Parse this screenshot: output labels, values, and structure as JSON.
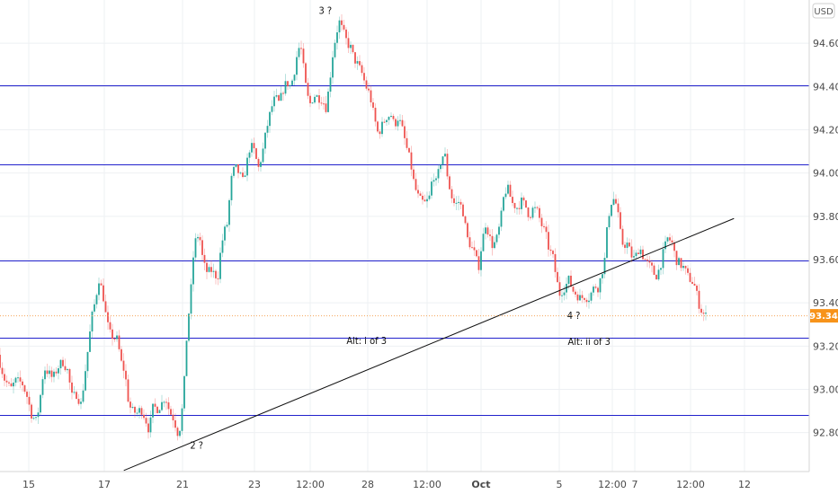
{
  "chart_data": {
    "type": "candlestick",
    "currency": "USD",
    "current_price": "93.34",
    "ylim": [
      92.62,
      94.8
    ],
    "grid": true,
    "x_ticks": [
      "15",
      "17",
      "21",
      "23",
      "12:00",
      "28",
      "12:00",
      "Oct",
      "5",
      "12:00",
      "7",
      "12:00",
      "12"
    ],
    "y_ticks": [
      "92.80",
      "93.00",
      "93.20",
      "93.40",
      "93.60",
      "93.80",
      "94.00",
      "94.20",
      "94.40",
      "94.60"
    ],
    "horizontal_levels": [
      94.404,
      94.04,
      93.597,
      93.238,
      92.883
    ],
    "trendline": {
      "start": {
        "t": 0.153,
        "price": 92.625
      },
      "end": {
        "t": 0.907,
        "price": 93.79
      }
    },
    "annotations": [
      {
        "text": "3 ?",
        "t": 0.402,
        "price": 94.735
      },
      {
        "text": "2 ?",
        "t": 0.243,
        "price": 92.725
      },
      {
        "text": "4 ?",
        "t": 0.709,
        "price": 93.325
      },
      {
        "text": "Alt: i of 3",
        "t": 0.453,
        "price": 93.21
      },
      {
        "text": "Alt: ii of 3",
        "t": 0.728,
        "price": 93.205
      }
    ],
    "price_path": [
      [
        0.0,
        93.16
      ],
      [
        0.008,
        93.05
      ],
      [
        0.016,
        93.0
      ],
      [
        0.022,
        93.04
      ],
      [
        0.03,
        93.03
      ],
      [
        0.036,
        92.97
      ],
      [
        0.042,
        92.88
      ],
      [
        0.048,
        92.85
      ],
      [
        0.052,
        92.95
      ],
      [
        0.057,
        93.1
      ],
      [
        0.062,
        93.08
      ],
      [
        0.068,
        93.05
      ],
      [
        0.074,
        93.1
      ],
      [
        0.08,
        93.13
      ],
      [
        0.086,
        93.09
      ],
      [
        0.092,
        92.96
      ],
      [
        0.097,
        92.98
      ],
      [
        0.103,
        92.93
      ],
      [
        0.108,
        93.08
      ],
      [
        0.112,
        93.2
      ],
      [
        0.116,
        93.33
      ],
      [
        0.12,
        93.4
      ],
      [
        0.125,
        93.51
      ],
      [
        0.13,
        93.44
      ],
      [
        0.134,
        93.33
      ],
      [
        0.138,
        93.26
      ],
      [
        0.143,
        93.24
      ],
      [
        0.148,
        93.23
      ],
      [
        0.152,
        93.13
      ],
      [
        0.157,
        93.08
      ],
      [
        0.162,
        92.93
      ],
      [
        0.166,
        92.9
      ],
      [
        0.172,
        92.89
      ],
      [
        0.177,
        92.91
      ],
      [
        0.182,
        92.87
      ],
      [
        0.187,
        92.81
      ],
      [
        0.192,
        92.92
      ],
      [
        0.197,
        92.91
      ],
      [
        0.202,
        92.93
      ],
      [
        0.207,
        92.97
      ],
      [
        0.212,
        92.9
      ],
      [
        0.218,
        92.86
      ],
      [
        0.222,
        92.8
      ],
      [
        0.226,
        92.83
      ],
      [
        0.23,
        93.0
      ],
      [
        0.234,
        93.28
      ],
      [
        0.238,
        93.42
      ],
      [
        0.242,
        93.63
      ],
      [
        0.246,
        93.72
      ],
      [
        0.25,
        93.69
      ],
      [
        0.254,
        93.58
      ],
      [
        0.259,
        93.54
      ],
      [
        0.264,
        93.55
      ],
      [
        0.268,
        93.53
      ],
      [
        0.272,
        93.52
      ],
      [
        0.276,
        93.66
      ],
      [
        0.28,
        93.73
      ],
      [
        0.284,
        93.77
      ],
      [
        0.288,
        93.96
      ],
      [
        0.293,
        94.03
      ],
      [
        0.298,
        94.0
      ],
      [
        0.303,
        93.96
      ],
      [
        0.308,
        94.05
      ],
      [
        0.312,
        94.13
      ],
      [
        0.317,
        94.1
      ],
      [
        0.322,
        94.02
      ],
      [
        0.327,
        94.09
      ],
      [
        0.332,
        94.2
      ],
      [
        0.338,
        94.3
      ],
      [
        0.343,
        94.35
      ],
      [
        0.348,
        94.32
      ],
      [
        0.352,
        94.38
      ],
      [
        0.357,
        94.42
      ],
      [
        0.362,
        94.4
      ],
      [
        0.366,
        94.46
      ],
      [
        0.37,
        94.55
      ],
      [
        0.374,
        94.6
      ],
      [
        0.378,
        94.48
      ],
      [
        0.382,
        94.36
      ],
      [
        0.386,
        94.32
      ],
      [
        0.391,
        94.36
      ],
      [
        0.396,
        94.35
      ],
      [
        0.401,
        94.34
      ],
      [
        0.406,
        94.3
      ],
      [
        0.41,
        94.42
      ],
      [
        0.414,
        94.55
      ],
      [
        0.418,
        94.64
      ],
      [
        0.422,
        94.7
      ],
      [
        0.427,
        94.65
      ],
      [
        0.432,
        94.6
      ],
      [
        0.436,
        94.58
      ],
      [
        0.44,
        94.53
      ],
      [
        0.445,
        94.5
      ],
      [
        0.45,
        94.46
      ],
      [
        0.455,
        94.4
      ],
      [
        0.46,
        94.36
      ],
      [
        0.465,
        94.26
      ],
      [
        0.47,
        94.18
      ],
      [
        0.475,
        94.22
      ],
      [
        0.48,
        94.26
      ],
      [
        0.486,
        94.27
      ],
      [
        0.49,
        94.22
      ],
      [
        0.495,
        94.26
      ],
      [
        0.5,
        94.2
      ],
      [
        0.505,
        94.12
      ],
      [
        0.51,
        94.05
      ],
      [
        0.514,
        93.96
      ],
      [
        0.518,
        93.9
      ],
      [
        0.523,
        93.87
      ],
      [
        0.528,
        93.86
      ],
      [
        0.533,
        93.88
      ],
      [
        0.538,
        94.0
      ],
      [
        0.542,
        93.95
      ],
      [
        0.547,
        94.05
      ],
      [
        0.552,
        94.1
      ],
      [
        0.556,
        93.98
      ],
      [
        0.56,
        93.9
      ],
      [
        0.565,
        93.85
      ],
      [
        0.57,
        93.87
      ],
      [
        0.575,
        93.82
      ],
      [
        0.58,
        93.7
      ],
      [
        0.585,
        93.66
      ],
      [
        0.59,
        93.62
      ],
      [
        0.594,
        93.56
      ],
      [
        0.598,
        93.67
      ],
      [
        0.603,
        93.77
      ],
      [
        0.608,
        93.7
      ],
      [
        0.612,
        93.66
      ],
      [
        0.617,
        93.7
      ],
      [
        0.621,
        93.77
      ],
      [
        0.626,
        93.91
      ],
      [
        0.63,
        93.93
      ],
      [
        0.636,
        93.86
      ],
      [
        0.642,
        93.84
      ],
      [
        0.647,
        93.87
      ],
      [
        0.652,
        93.85
      ],
      [
        0.657,
        93.8
      ],
      [
        0.662,
        93.84
      ],
      [
        0.667,
        93.82
      ],
      [
        0.672,
        93.76
      ],
      [
        0.677,
        93.72
      ],
      [
        0.681,
        93.65
      ],
      [
        0.686,
        93.61
      ],
      [
        0.69,
        93.52
      ],
      [
        0.694,
        93.44
      ],
      [
        0.698,
        93.46
      ],
      [
        0.702,
        93.48
      ],
      [
        0.706,
        93.51
      ],
      [
        0.71,
        93.46
      ],
      [
        0.715,
        93.44
      ],
      [
        0.72,
        93.42
      ],
      [
        0.725,
        93.43
      ],
      [
        0.73,
        93.42
      ],
      [
        0.734,
        93.45
      ],
      [
        0.738,
        93.48
      ],
      [
        0.742,
        93.47
      ],
      [
        0.746,
        93.53
      ],
      [
        0.75,
        93.6
      ],
      [
        0.753,
        93.74
      ],
      [
        0.757,
        93.86
      ],
      [
        0.761,
        93.88
      ],
      [
        0.765,
        93.85
      ],
      [
        0.769,
        93.73
      ],
      [
        0.773,
        93.66
      ],
      [
        0.777,
        93.68
      ],
      [
        0.781,
        93.64
      ],
      [
        0.785,
        93.6
      ],
      [
        0.789,
        93.62
      ],
      [
        0.793,
        93.66
      ],
      [
        0.798,
        93.61
      ],
      [
        0.803,
        93.58
      ],
      [
        0.808,
        93.56
      ],
      [
        0.813,
        93.52
      ],
      [
        0.818,
        93.56
      ],
      [
        0.823,
        93.64
      ],
      [
        0.828,
        93.7
      ],
      [
        0.833,
        93.68
      ],
      [
        0.838,
        93.6
      ],
      [
        0.843,
        93.58
      ],
      [
        0.848,
        93.56
      ],
      [
        0.853,
        93.52
      ],
      [
        0.858,
        93.5
      ],
      [
        0.862,
        93.47
      ],
      [
        0.866,
        93.4
      ],
      [
        0.87,
        93.36
      ],
      [
        0.874,
        93.34
      ]
    ]
  }
}
